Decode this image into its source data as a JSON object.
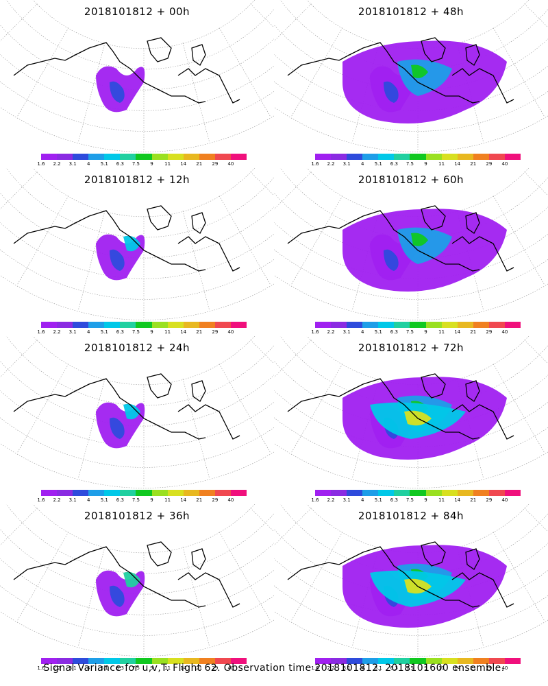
{
  "panels": [
    {
      "title": "2018101812 + 00h",
      "level": 0
    },
    {
      "title": "2018101812 + 48h",
      "level": 3
    },
    {
      "title": "2018101812 + 12h",
      "level": 1
    },
    {
      "title": "2018101812 + 60h",
      "level": 4
    },
    {
      "title": "2018101812 + 24h",
      "level": 1
    },
    {
      "title": "2018101812 + 72h",
      "level": 5
    },
    {
      "title": "2018101812 + 36h",
      "level": 2
    },
    {
      "title": "2018101812 + 84h",
      "level": 5
    }
  ],
  "colorbar": {
    "labels": [
      "1.6",
      "2.2",
      "3.1",
      "4",
      "5.1",
      "6.3",
      "7.5",
      "9",
      "11",
      "14",
      "21",
      "29",
      "40"
    ],
    "colors": [
      "#a020f0",
      "#8a2be2",
      "#2e4bdc",
      "#1e9ee8",
      "#00c8e8",
      "#20d0a0",
      "#10c820",
      "#9ae020",
      "#d8e020",
      "#e8b820",
      "#f08020",
      "#f04850",
      "#f0107c"
    ]
  },
  "footer": "Signal Variance for u,v,T. Flight 62. Observation time 2018101812. 2018101600 ensemble."
}
